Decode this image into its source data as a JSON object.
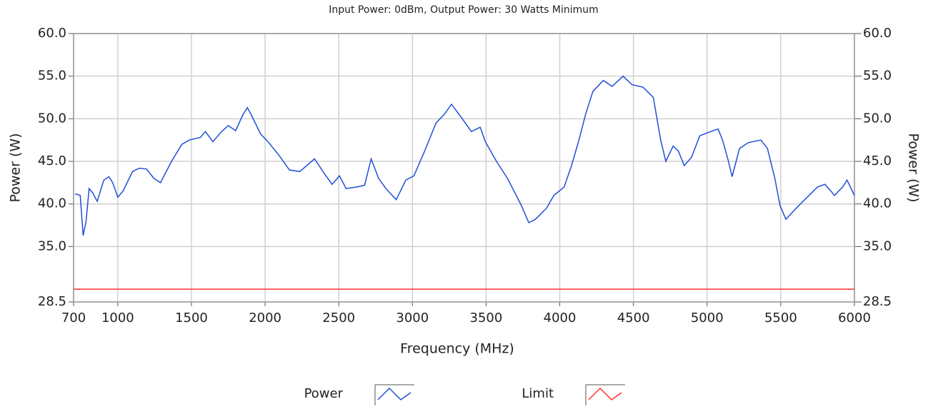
{
  "chart_data": {
    "type": "line",
    "title": "Input Power: 0dBm, Output Power: 30 Watts Minimum",
    "x_label": "Frequency (MHz)",
    "y_label": "Power (W)",
    "y2_label": "Power (W)",
    "xlim": [
      700,
      6000
    ],
    "xticks": [
      700,
      1000,
      1500,
      2000,
      2500,
      3000,
      3500,
      4000,
      4500,
      5000,
      5500,
      6000
    ],
    "ylim": [
      28.5,
      60
    ],
    "yticks": [
      {
        "value": 28.5,
        "label": "28.5"
      },
      {
        "value": 35,
        "label": "35.0"
      },
      {
        "value": 40,
        "label": "40.0"
      },
      {
        "value": 45,
        "label": "45.0"
      },
      {
        "value": 50,
        "label": "50.0"
      },
      {
        "value": 55,
        "label": "55.0"
      },
      {
        "value": 60,
        "label": "60.0"
      }
    ],
    "y2lim": [
      28.5,
      60
    ],
    "y2ticks": [
      {
        "value": 28.5,
        "label": "28.5"
      },
      {
        "value": 35,
        "label": "35.0"
      },
      {
        "value": 40,
        "label": "40.0"
      },
      {
        "value": 45,
        "label": "45.0"
      },
      {
        "value": 50,
        "label": "50.0"
      },
      {
        "value": 55,
        "label": "55.0"
      },
      {
        "value": 60,
        "label": "60.0"
      }
    ],
    "grid": true,
    "legend": "bottom",
    "series": [
      {
        "name": "Power",
        "color": "#1f4fd6",
        "x": [
          710,
          745,
          765,
          785,
          805,
          830,
          860,
          905,
          940,
          965,
          1000,
          1035,
          1100,
          1145,
          1195,
          1245,
          1290,
          1365,
          1435,
          1485,
          1560,
          1595,
          1645,
          1705,
          1750,
          1800,
          1850,
          1880,
          1905,
          1970,
          2020,
          2090,
          2165,
          2235,
          2335,
          2405,
          2455,
          2505,
          2550,
          2625,
          2675,
          2720,
          2770,
          2820,
          2890,
          2955,
          3010,
          3085,
          3160,
          3215,
          3265,
          3330,
          3400,
          3460,
          3495,
          3570,
          3645,
          3690,
          3740,
          3790,
          3835,
          3910,
          3960,
          4030,
          4080,
          4130,
          4175,
          4225,
          4295,
          4355,
          4430,
          4490,
          4565,
          4635,
          4685,
          4720,
          4770,
          4805,
          4845,
          4895,
          4950,
          5025,
          5075,
          5105,
          5145,
          5170,
          5220,
          5280,
          5365,
          5410,
          5460,
          5495,
          5535,
          5605,
          5680,
          5750,
          5800,
          5865,
          5920,
          5950,
          6000
        ],
        "values": [
          41.2,
          41,
          36.3,
          38,
          41.8,
          41.3,
          40.3,
          42.8,
          43.2,
          42.5,
          40.8,
          41.5,
          43.8,
          44.2,
          44.1,
          43,
          42.5,
          45,
          47,
          47.5,
          47.8,
          48.5,
          47.3,
          48.5,
          49.2,
          48.6,
          50.5,
          51.3,
          50.5,
          48.2,
          47.3,
          45.8,
          44,
          43.8,
          45.3,
          43.5,
          42.3,
          43.3,
          41.8,
          42,
          42.2,
          45.3,
          43,
          41.8,
          40.5,
          42.8,
          43.3,
          46.3,
          49.5,
          50.5,
          51.7,
          50.2,
          48.5,
          49,
          47.3,
          45,
          43,
          41.5,
          39.8,
          37.8,
          38.2,
          39.5,
          41,
          42,
          44.5,
          47.5,
          50.5,
          53.2,
          54.5,
          53.8,
          55,
          54,
          53.7,
          52.5,
          47.5,
          45,
          46.8,
          46.2,
          44.5,
          45.5,
          48,
          48.5,
          48.8,
          47.5,
          45,
          43.2,
          46.5,
          47.2,
          47.5,
          46.5,
          43,
          39.8,
          38.2,
          39.5,
          40.8,
          42,
          42.3,
          41,
          42,
          42.8,
          41
        ]
      },
      {
        "name": "Limit",
        "color": "#ff3030",
        "x": [
          700,
          6000
        ],
        "values": [
          30,
          30
        ]
      }
    ]
  }
}
